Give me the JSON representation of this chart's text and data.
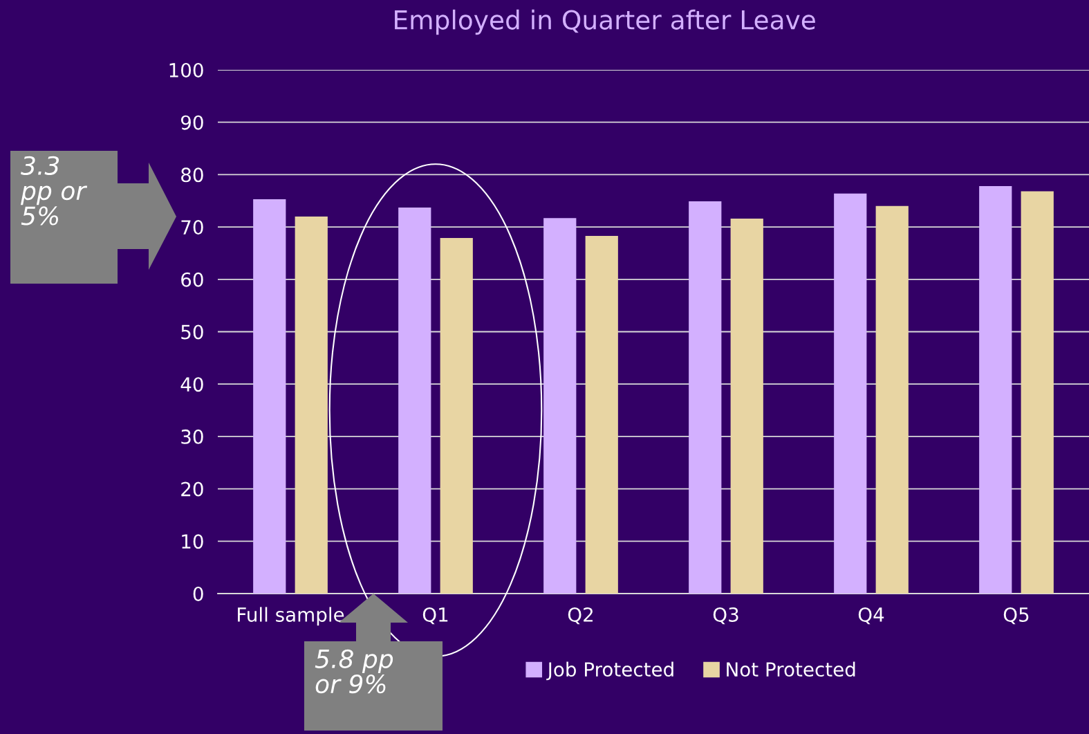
{
  "chart_data": {
    "type": "bar",
    "title": "Employed in Quarter after Leave",
    "categories": [
      "Full sample",
      "Q1",
      "Q2",
      "Q3",
      "Q4",
      "Q5"
    ],
    "series": [
      {
        "name": "Job Protected",
        "color": "#d3b0ff",
        "values": [
          75.3,
          73.7,
          71.7,
          74.9,
          76.4,
          77.8
        ]
      },
      {
        "name": "Not Protected",
        "color": "#e8d5a3",
        "values": [
          72.0,
          67.9,
          68.3,
          71.6,
          74.0,
          76.8
        ]
      }
    ],
    "ylim": [
      0,
      100
    ],
    "yticks": [
      0,
      10,
      20,
      30,
      40,
      50,
      60,
      70,
      80,
      90,
      100
    ],
    "grid": "y",
    "legend": "bottom",
    "annotations": [
      "3.3\npp or\n5%",
      "5.8 pp\nor 9%"
    ]
  }
}
